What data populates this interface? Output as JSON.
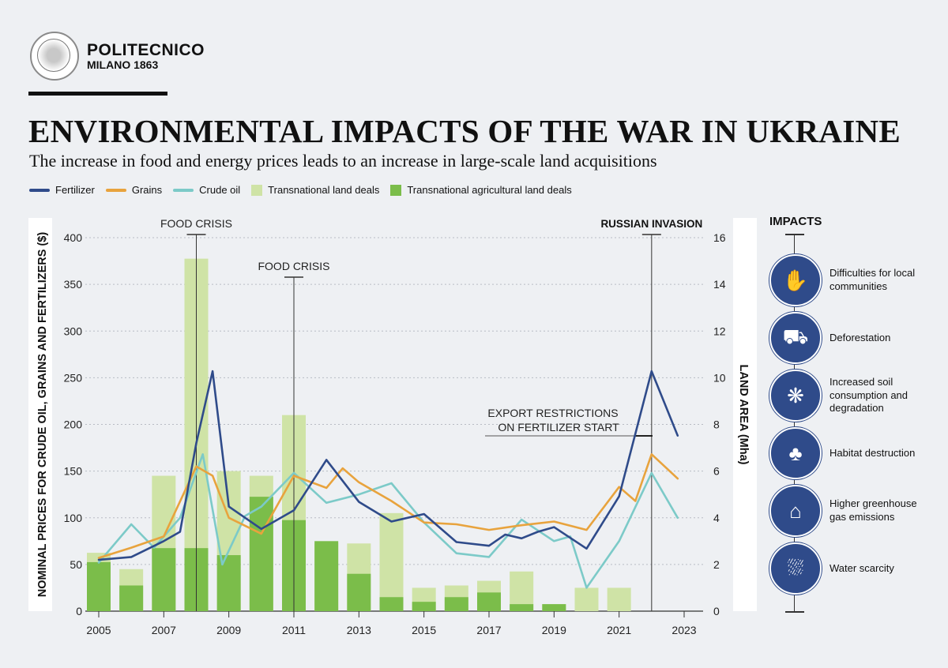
{
  "brand": {
    "line1": "POLITECNICO",
    "line2": "MILANO 1863"
  },
  "title": "ENVIRONMENTAL IMPACTS OF THE WAR IN UKRAINE",
  "subtitle": "The increase in food and energy prices leads to an increase in large-scale land acquisitions",
  "legend": [
    {
      "label": "Fertilizer",
      "color": "#2f4b8a",
      "kind": "line"
    },
    {
      "label": "Grains",
      "color": "#e8a33d",
      "kind": "line"
    },
    {
      "label": "Crude oil",
      "color": "#7ccac8",
      "kind": "line"
    },
    {
      "label": "Transnational land deals",
      "color": "#cfe3a6",
      "kind": "box"
    },
    {
      "label": "Transnational agricultural land deals",
      "color": "#7bbd4a",
      "kind": "box"
    }
  ],
  "chart_data": {
    "type": "bar",
    "ylabel_left": "NOMINAL PRICES FOR CRUDE OIL, GRAINS AND FERTILIZERS ($)",
    "ylabel_right": "LAND AREA (Mha)",
    "ylim_left": [
      0,
      400
    ],
    "ylim_right": [
      0,
      16
    ],
    "yticks_left": [
      "0",
      "50",
      "100",
      "150",
      "200",
      "250",
      "300",
      "350",
      "400"
    ],
    "yticks_right": [
      "0",
      "2",
      "4",
      "6",
      "8",
      "10",
      "12",
      "14",
      "16"
    ],
    "xticks": [
      "2005",
      "2007",
      "2009",
      "2011",
      "2013",
      "2015",
      "2017",
      "2019",
      "2021",
      "2023"
    ],
    "xlim": [
      2005,
      2023
    ],
    "bars": {
      "years": [
        2005,
        2006,
        2007,
        2008,
        2009,
        2010,
        2011,
        2012,
        2013,
        2014,
        2015,
        2016,
        2017,
        2018,
        2019,
        2020,
        2021
      ],
      "land_deals_mha": [
        2.5,
        1.8,
        5.8,
        15.1,
        6.0,
        5.8,
        8.4,
        2.9,
        2.9,
        4.2,
        1.0,
        1.1,
        1.3,
        1.7,
        0.3,
        1.0,
        1.0
      ],
      "agri_land_deals_mha": [
        2.1,
        1.1,
        2.7,
        2.7,
        2.4,
        4.9,
        3.9,
        3.0,
        1.6,
        0.6,
        0.4,
        0.6,
        0.8,
        0.3,
        0.3,
        0,
        0
      ]
    },
    "series": [
      {
        "name": "Fertilizer",
        "color": "#2f4b8a",
        "x": [
          2005,
          2006,
          2007,
          2007.5,
          2008,
          2008.5,
          2009,
          2010,
          2011,
          2012,
          2013,
          2014,
          2015,
          2016,
          2017,
          2017.5,
          2018,
          2018.5,
          2019,
          2020,
          2021,
          2022,
          2022.8
        ],
        "y": [
          55,
          58,
          75,
          85,
          180,
          257,
          112,
          88,
          108,
          162,
          117,
          96,
          104,
          74,
          70,
          82,
          78,
          85,
          90,
          67,
          123,
          257,
          188
        ]
      },
      {
        "name": "Grains",
        "color": "#e8a33d",
        "x": [
          2005,
          2006,
          2007,
          2008,
          2008.5,
          2009,
          2010,
          2011,
          2012,
          2012.5,
          2013,
          2014,
          2015,
          2016,
          2017,
          2018,
          2019,
          2020,
          2021,
          2021.5,
          2022,
          2022.8
        ],
        "y": [
          57,
          68,
          80,
          155,
          145,
          100,
          83,
          145,
          132,
          153,
          138,
          118,
          95,
          93,
          87,
          92,
          96,
          87,
          133,
          118,
          168,
          142
        ]
      },
      {
        "name": "Crude oil",
        "color": "#7ccac8",
        "x": [
          2005,
          2006,
          2006.7,
          2007.5,
          2008.2,
          2008.8,
          2009.5,
          2010,
          2011,
          2012,
          2013,
          2014,
          2015,
          2016,
          2017,
          2018,
          2019,
          2019.5,
          2020,
          2021,
          2022,
          2022.8
        ],
        "y": [
          52,
          93,
          68,
          100,
          168,
          50,
          102,
          112,
          148,
          116,
          125,
          137,
          95,
          62,
          58,
          98,
          75,
          80,
          25,
          75,
          148,
          100
        ]
      }
    ],
    "annotations": [
      {
        "text": "FOOD CRISIS",
        "x": 2008
      },
      {
        "text": "FOOD CRISIS",
        "x": 2011
      },
      {
        "text": "RUSSIAN INVASION",
        "x": 2022
      },
      {
        "text": "EXPORT RESTRICTIONS",
        "text2": "ON FERTILIZER START",
        "x": 2022
      }
    ]
  },
  "impacts": {
    "title": "IMPACTS",
    "items": [
      {
        "label": "Difficulties for local communities",
        "icon": "hands-people-icon",
        "glyph": "✋"
      },
      {
        "label": "Deforestation",
        "icon": "logging-truck-icon",
        "glyph": "⛟"
      },
      {
        "label": "Increased soil consumption and degradation",
        "icon": "cracked-soil-icon",
        "glyph": "❋"
      },
      {
        "label": "Habitat destruction",
        "icon": "trees-icon",
        "glyph": "♣"
      },
      {
        "label": "Higher greenhouse gas emissions",
        "icon": "factory-icon",
        "glyph": "⌂"
      },
      {
        "label": "Water scarcity",
        "icon": "water-tap-icon",
        "glyph": "⛆"
      }
    ]
  }
}
